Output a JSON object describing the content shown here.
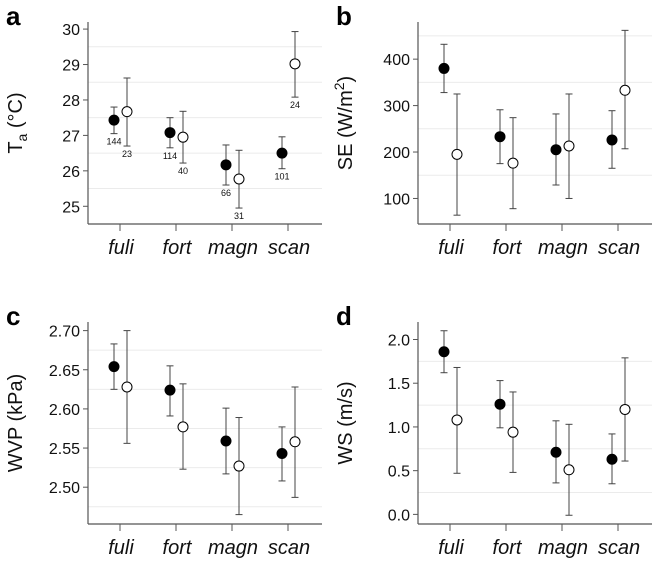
{
  "chart_data": [
    {
      "type": "scatter",
      "panel": "a",
      "ylabel": {
        "base": "T",
        "sub": "a",
        "sup": "",
        "rest": " (°C)"
      },
      "categories": [
        "fuli",
        "fort",
        "magn",
        "scan"
      ],
      "yticks": [
        "25",
        "26",
        "27",
        "28",
        "29",
        "30"
      ],
      "ytick_values": [
        25,
        26,
        27,
        28,
        29,
        30
      ],
      "ylim": [
        24.5,
        30.2
      ],
      "minor_grid": [
        25.5,
        26.5,
        27.5,
        28.5,
        29.5
      ],
      "series": [
        {
          "marker": "filled",
          "mean": [
            27.43,
            27.08,
            26.17,
            26.5
          ],
          "upper": [
            27.8,
            27.5,
            26.73,
            26.96
          ],
          "lower": [
            27.05,
            26.65,
            25.6,
            26.06
          ],
          "n": [
            "144",
            "114",
            "66",
            "101"
          ]
        },
        {
          "marker": "open",
          "mean": [
            27.67,
            26.95,
            25.77,
            29.02
          ],
          "upper": [
            28.62,
            27.68,
            26.58,
            29.93
          ],
          "lower": [
            26.7,
            26.22,
            24.95,
            28.08
          ],
          "n": [
            "23",
            "40",
            "31",
            "24"
          ]
        }
      ]
    },
    {
      "type": "scatter",
      "panel": "b",
      "ylabel": {
        "base": "SE (W/m",
        "sub": "",
        "sup": "2",
        "rest": ")"
      },
      "categories": [
        "fuli",
        "fort",
        "magn",
        "scan"
      ],
      "yticks": [
        "100",
        "200",
        "300",
        "400"
      ],
      "ytick_values": [
        100,
        200,
        300,
        400
      ],
      "ylim": [
        45,
        480
      ],
      "minor_grid": [
        150,
        250,
        350,
        450
      ],
      "series": [
        {
          "marker": "filled",
          "mean": [
            380,
            233,
            205,
            226
          ],
          "upper": [
            432,
            291,
            282,
            289
          ],
          "lower": [
            328,
            175,
            129,
            165
          ]
        },
        {
          "marker": "open",
          "mean": [
            195,
            176,
            213,
            333
          ],
          "upper": [
            325,
            274,
            325,
            462
          ],
          "lower": [
            64,
            78,
            100,
            207
          ]
        }
      ]
    },
    {
      "type": "scatter",
      "panel": "c",
      "ylabel": {
        "base": "WVP (kPa)",
        "sub": "",
        "sup": "",
        "rest": ""
      },
      "categories": [
        "fuli",
        "fort",
        "magn",
        "scan"
      ],
      "yticks": [
        "2.50",
        "2.55",
        "2.60",
        "2.65",
        "2.70"
      ],
      "ytick_values": [
        2.5,
        2.55,
        2.6,
        2.65,
        2.7
      ],
      "ylim": [
        2.453,
        2.711
      ],
      "minor_grid": [
        2.475,
        2.525,
        2.575,
        2.625,
        2.675
      ],
      "series": [
        {
          "marker": "filled",
          "mean": [
            2.654,
            2.624,
            2.559,
            2.543
          ],
          "upper": [
            2.683,
            2.655,
            2.601,
            2.577
          ],
          "lower": [
            2.625,
            2.591,
            2.517,
            2.508
          ]
        },
        {
          "marker": "open",
          "mean": [
            2.628,
            2.577,
            2.527,
            2.558
          ],
          "upper": [
            2.7,
            2.632,
            2.589,
            2.628
          ],
          "lower": [
            2.556,
            2.523,
            2.465,
            2.487
          ]
        }
      ]
    },
    {
      "type": "scatter",
      "panel": "d",
      "ylabel": {
        "base": "WS (m/s)",
        "sub": "",
        "sup": "",
        "rest": ""
      },
      "categories": [
        "fuli",
        "fort",
        "magn",
        "scan"
      ],
      "yticks": [
        "0.0",
        "0.5",
        "1.0",
        "1.5",
        "2.0"
      ],
      "ytick_values": [
        0,
        0.5,
        1,
        1.5,
        2
      ],
      "ylim": [
        -0.11,
        2.2
      ],
      "minor_grid": [
        0.25,
        0.75,
        1.25,
        1.75
      ],
      "series": [
        {
          "marker": "filled",
          "mean": [
            1.86,
            1.26,
            0.71,
            0.63
          ],
          "upper": [
            2.1,
            1.53,
            1.07,
            0.92
          ],
          "lower": [
            1.62,
            0.99,
            0.36,
            0.35
          ]
        },
        {
          "marker": "open",
          "mean": [
            1.08,
            0.94,
            0.51,
            1.2
          ],
          "upper": [
            1.68,
            1.4,
            1.03,
            1.79
          ],
          "lower": [
            0.47,
            0.48,
            -0.01,
            0.61
          ]
        }
      ]
    }
  ]
}
